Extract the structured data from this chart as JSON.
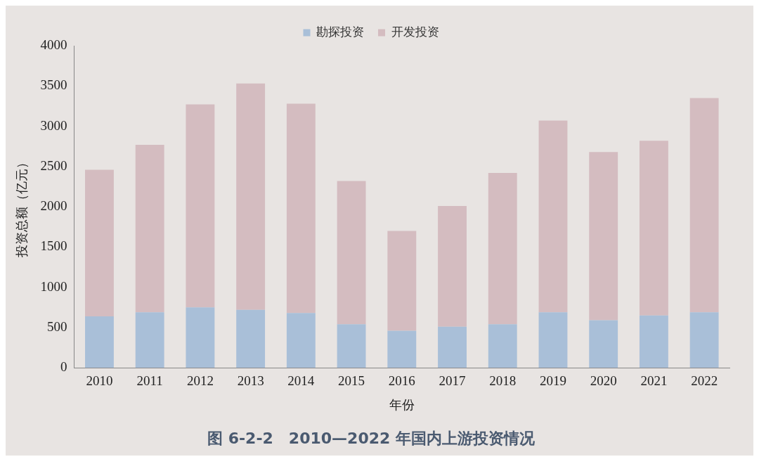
{
  "chart_data": {
    "type": "bar",
    "title": "图 6-2-2　2010—2022 年国内上游投资情况",
    "xlabel": "年份",
    "ylabel": "投资总额（亿元）",
    "categories": [
      "2010",
      "2011",
      "2012",
      "2013",
      "2014",
      "2015",
      "2016",
      "2017",
      "2018",
      "2019",
      "2020",
      "2021",
      "2022"
    ],
    "series": [
      {
        "name": "勘探投资",
        "color": "#a9bfd8",
        "values": [
          640,
          690,
          750,
          720,
          680,
          540,
          460,
          510,
          540,
          690,
          590,
          650,
          690
        ]
      },
      {
        "name": "开发投资",
        "color": "#d4bcc0",
        "values": [
          1820,
          2080,
          2520,
          2810,
          2600,
          1780,
          1240,
          1500,
          1880,
          2380,
          2090,
          2170,
          2660
        ]
      }
    ],
    "stacked": true,
    "ylim": [
      0,
      4000
    ],
    "yticks": [
      0,
      500,
      1000,
      1500,
      2000,
      2500,
      3000,
      3500,
      4000
    ],
    "grid": false,
    "legend": "top"
  }
}
